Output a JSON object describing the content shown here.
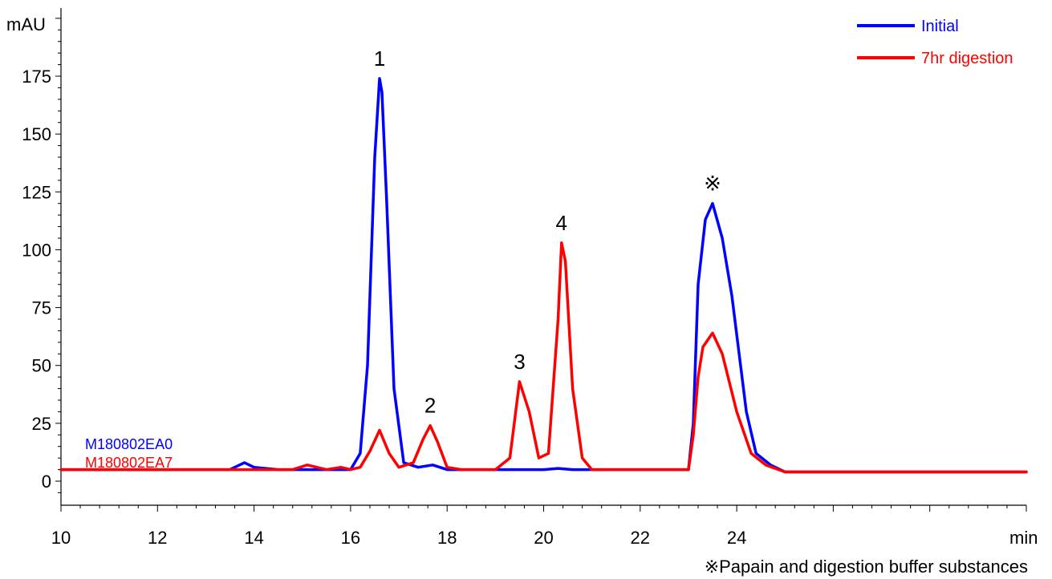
{
  "chart_data": {
    "type": "line",
    "ylabel": "mAU",
    "xlabel": "min",
    "xlim": [
      10,
      30
    ],
    "ylim": [
      -5,
      205
    ],
    "x_ticks": [
      10,
      12,
      14,
      16,
      18,
      20,
      22,
      24
    ],
    "y_ticks": [
      0,
      25,
      50,
      75,
      100,
      125,
      150,
      175
    ],
    "grid": false,
    "legend_position": "top-right",
    "series": [
      {
        "name": "Initial",
        "color": "#0000ff",
        "x": [
          10,
          12,
          12.7,
          13.0,
          13.5,
          13.8,
          14.0,
          14.5,
          15.0,
          15.5,
          16.0,
          16.2,
          16.35,
          16.5,
          16.6,
          16.65,
          16.75,
          16.9,
          17.1,
          17.4,
          17.7,
          18.0,
          19.0,
          20.0,
          20.3,
          20.6,
          22.0,
          23.0,
          23.1,
          23.2,
          23.35,
          23.5,
          23.7,
          23.9,
          24.2,
          24.4,
          24.7,
          25.0,
          26.0,
          30.0
        ],
        "y": [
          5,
          5,
          5,
          5,
          5,
          8,
          6,
          5,
          5,
          5,
          5,
          12,
          50,
          140,
          174,
          168,
          120,
          40,
          8,
          6,
          7,
          5,
          5,
          5,
          5.5,
          5,
          5,
          5,
          25,
          85,
          113,
          120,
          105,
          80,
          30,
          12,
          7,
          4,
          4,
          4
        ]
      },
      {
        "name": "7hr digestion",
        "color": "#ff0000",
        "x": [
          10,
          14.0,
          14.8,
          15.1,
          15.5,
          15.8,
          16.0,
          16.2,
          16.4,
          16.6,
          16.8,
          17.0,
          17.3,
          17.5,
          17.65,
          17.8,
          18.0,
          18.3,
          19.0,
          19.3,
          19.5,
          19.7,
          19.9,
          20.1,
          20.3,
          20.37,
          20.45,
          20.6,
          20.8,
          21.0,
          21.5,
          23.0,
          23.1,
          23.2,
          23.3,
          23.5,
          23.7,
          24.0,
          24.3,
          24.6,
          25.0,
          26.0,
          30.0
        ],
        "y": [
          5,
          5,
          5,
          7,
          5,
          6,
          5,
          6,
          13,
          22,
          12,
          6,
          8,
          18,
          24,
          17,
          6,
          5,
          5,
          10,
          43,
          30,
          10,
          12,
          70,
          103,
          95,
          40,
          10,
          5,
          5,
          5,
          20,
          45,
          58,
          64,
          55,
          30,
          12,
          7,
          4,
          4,
          4
        ]
      }
    ],
    "peak_annotations": [
      {
        "label": "1",
        "x": 16.6,
        "y": 174
      },
      {
        "label": "2",
        "x": 17.65,
        "y": 24
      },
      {
        "label": "3",
        "x": 19.5,
        "y": 43
      },
      {
        "label": "4",
        "x": 20.37,
        "y": 103
      },
      {
        "label": "※",
        "x": 23.5,
        "y": 120
      }
    ],
    "sample_labels": [
      {
        "text": "M180802EA0",
        "color": "#0000ff"
      },
      {
        "text": "M180802EA7",
        "color": "#ff0000"
      }
    ],
    "footnote": "※Papain and digestion buffer substances"
  }
}
